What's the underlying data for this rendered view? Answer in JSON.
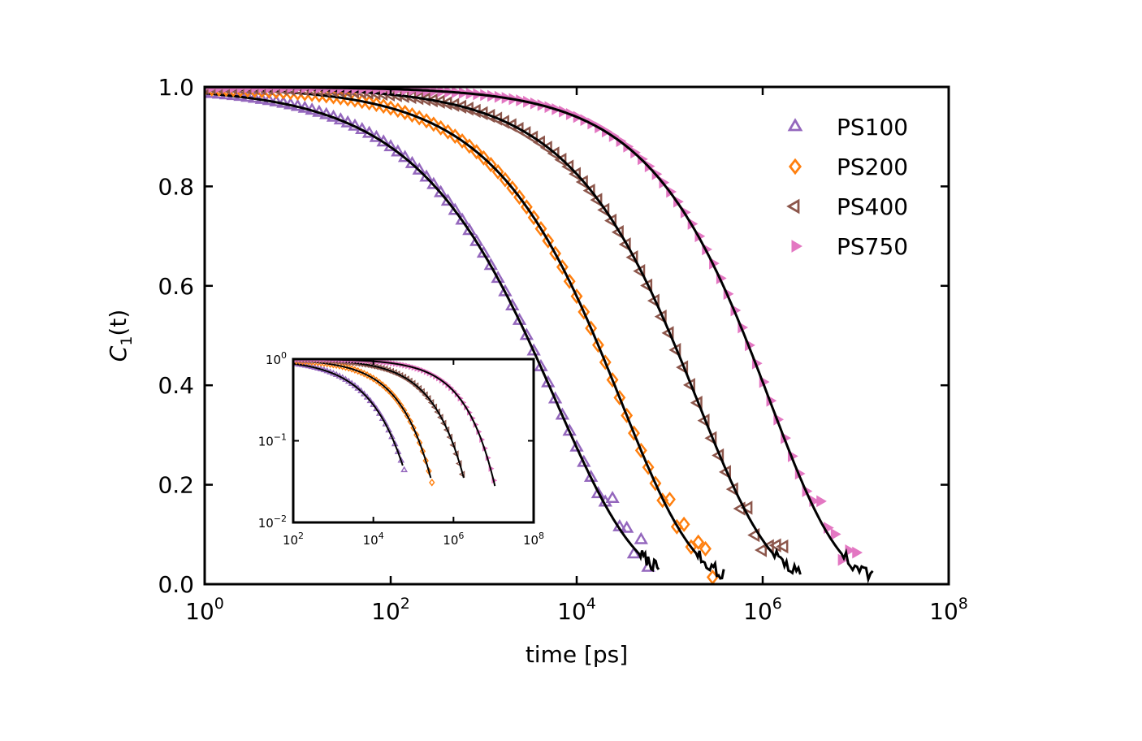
{
  "chart_data": [
    {
      "type": "scatter",
      "panel": "main",
      "xlabel": "time [ps]",
      "ylabel": "C",
      "ylabel_sub": "1",
      "ylabel_arg": "(t)",
      "xscale": "log",
      "xlim": [
        1,
        100000000
      ],
      "ylim": [
        0,
        1.0
      ],
      "x_ticks": [
        {
          "value": 1,
          "base": "10",
          "exp": "0"
        },
        {
          "value": 100,
          "base": "10",
          "exp": "2"
        },
        {
          "value": 10000,
          "base": "10",
          "exp": "4"
        },
        {
          "value": 1000000,
          "base": "10",
          "exp": "6"
        },
        {
          "value": 100000000,
          "base": "10",
          "exp": "8"
        }
      ],
      "y_ticks": [
        {
          "value": 0.0,
          "label": "0.0"
        },
        {
          "value": 0.2,
          "label": "0.2"
        },
        {
          "value": 0.4,
          "label": "0.4"
        },
        {
          "value": 0.6,
          "label": "0.6"
        },
        {
          "value": 0.8,
          "label": "0.8"
        },
        {
          "value": 1.0,
          "label": "1.0"
        }
      ],
      "legend": "top-right",
      "grid": false,
      "series": [
        {
          "name": "PS100",
          "color": "#9467bd",
          "marker": "triangle-up",
          "open": true,
          "tau": 6000,
          "beta": 0.5
        },
        {
          "name": "PS200",
          "color": "#ff7f0e",
          "marker": "diamond",
          "open": true,
          "tau": 30000,
          "beta": 0.55
        },
        {
          "name": "PS400",
          "color": "#8c564b",
          "marker": "triangle-left",
          "open": true,
          "tau": 200000,
          "beta": 0.55
        },
        {
          "name": "PS750",
          "color": "#e377c2",
          "marker": "triangle-right",
          "open": false,
          "tau": 1200000,
          "beta": 0.58
        }
      ],
      "fit_color": "#000000"
    },
    {
      "type": "scatter",
      "panel": "inset",
      "xscale": "log",
      "yscale": "log",
      "xlim": [
        100,
        100000000
      ],
      "ylim": [
        0.01,
        1
      ],
      "x_ticks": [
        {
          "value": 100,
          "base": "10",
          "exp": "2"
        },
        {
          "value": 10000,
          "base": "10",
          "exp": "4"
        },
        {
          "value": 1000000,
          "base": "10",
          "exp": "6"
        },
        {
          "value": 100000000,
          "base": "10",
          "exp": "8"
        }
      ],
      "y_ticks": [
        {
          "value": 1,
          "base": "10",
          "exp": "0"
        },
        {
          "value": 0.1,
          "base": "10",
          "exp": "−1"
        },
        {
          "value": 0.01,
          "base": "10",
          "exp": "−2"
        }
      ]
    }
  ]
}
